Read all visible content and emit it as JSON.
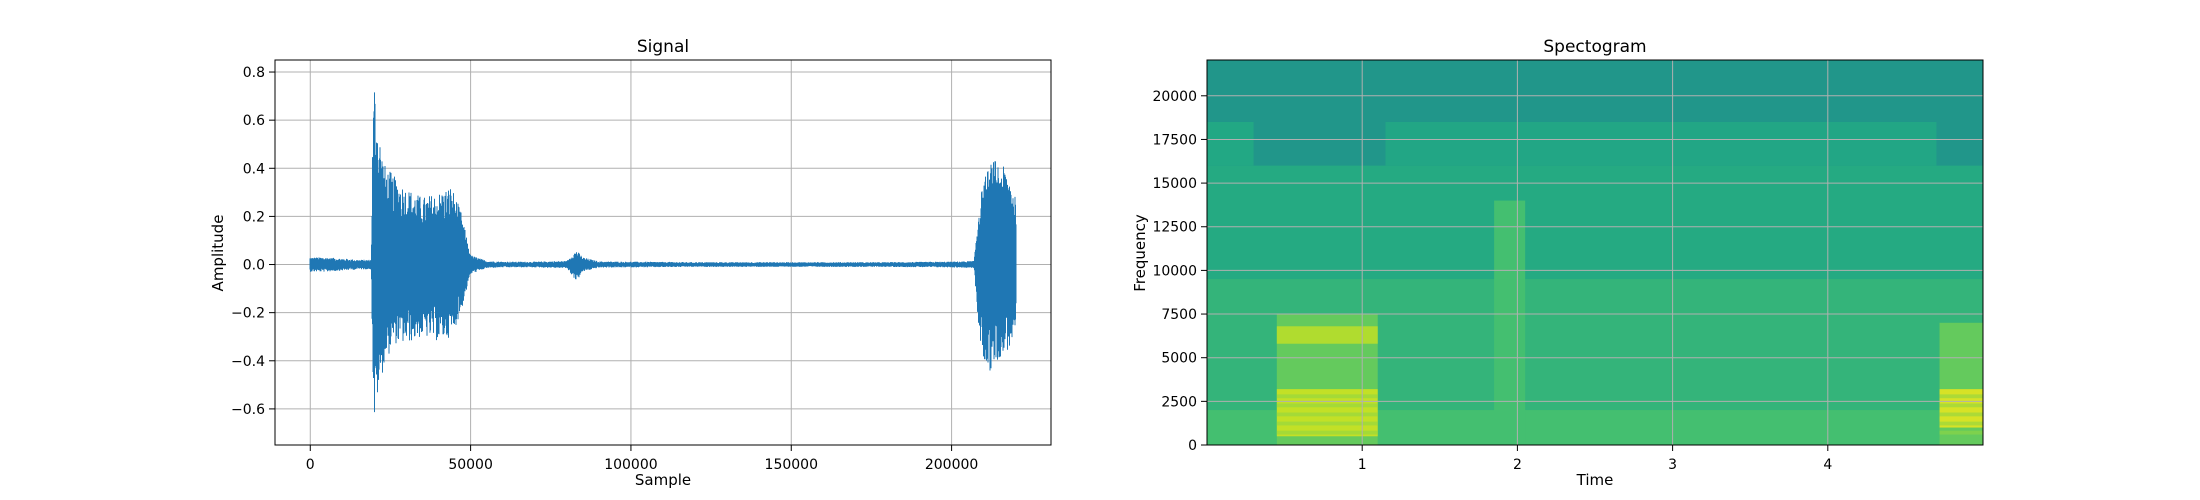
{
  "chart_data": [
    {
      "type": "line",
      "title": "Signal",
      "xlabel": "Sample",
      "ylabel": "Amplitude",
      "xlim": [
        -11000,
        231000
      ],
      "ylim": [
        -0.75,
        0.85
      ],
      "grid": true,
      "color": "#1f77b4",
      "xticks": [
        0,
        50000,
        100000,
        150000,
        200000
      ],
      "xtick_labels": [
        "0",
        "50000",
        "100000",
        "150000",
        "200000"
      ],
      "yticks": [
        -0.6,
        -0.4,
        -0.2,
        0.0,
        0.2,
        0.4,
        0.6,
        0.8
      ],
      "ytick_labels": [
        "−0.6",
        "−0.4",
        "−0.2",
        "0.0",
        "0.2",
        "0.4",
        "0.6",
        "0.8"
      ],
      "series": [
        {
          "x": [
            0,
            5000,
            10000,
            15000,
            19000,
            19500,
            20000,
            21000,
            23000,
            26000,
            30000,
            35000,
            40000,
            44000,
            47000,
            50000,
            55000,
            60000,
            70000,
            80000,
            83000,
            85000,
            90000,
            100000,
            120000,
            140000,
            160000,
            180000,
            200000,
            207000,
            208500,
            210000,
            212000,
            214000,
            216000,
            218000,
            220000
          ],
          "upper": [
            0.03,
            0.03,
            0.025,
            0.02,
            0.02,
            0.6,
            0.78,
            0.6,
            0.42,
            0.37,
            0.32,
            0.28,
            0.3,
            0.33,
            0.22,
            0.04,
            0.015,
            0.012,
            0.012,
            0.015,
            0.06,
            0.03,
            0.013,
            0.012,
            0.01,
            0.01,
            0.01,
            0.01,
            0.012,
            0.015,
            0.25,
            0.35,
            0.42,
            0.44,
            0.41,
            0.38,
            0.3
          ],
          "lower": [
            -0.03,
            -0.03,
            -0.025,
            -0.02,
            -0.02,
            -0.45,
            -0.67,
            -0.55,
            -0.42,
            -0.33,
            -0.33,
            -0.3,
            -0.32,
            -0.3,
            -0.2,
            -0.04,
            -0.015,
            -0.012,
            -0.012,
            -0.015,
            -0.07,
            -0.03,
            -0.013,
            -0.012,
            -0.01,
            -0.01,
            -0.01,
            -0.01,
            -0.012,
            -0.015,
            -0.3,
            -0.4,
            -0.45,
            -0.4,
            -0.38,
            -0.35,
            -0.27
          ]
        }
      ]
    },
    {
      "type": "heatmap",
      "title": "Spectogram",
      "xlabel": "Time",
      "ylabel": "Frequency",
      "xlim": [
        0.0,
        5.0
      ],
      "ylim": [
        0,
        22050
      ],
      "grid": true,
      "xticks": [
        1,
        2,
        3,
        4
      ],
      "xtick_labels": [
        "1",
        "2",
        "3",
        "4"
      ],
      "yticks": [
        0,
        2500,
        5000,
        7500,
        10000,
        12500,
        15000,
        17500,
        20000
      ],
      "ytick_labels": [
        "0",
        "2500",
        "5000",
        "7500",
        "10000",
        "12500",
        "15000",
        "17500",
        "20000"
      ],
      "colormap": [
        "#2a788e",
        "#21918c",
        "#22a884",
        "#44bf70",
        "#7ad151",
        "#bddf26",
        "#fde725"
      ],
      "bands": [
        {
          "t0": 0.0,
          "t1": 5.0,
          "f0": 0,
          "f1": 22050,
          "level": 0.2
        },
        {
          "t0": 0.0,
          "t1": 5.0,
          "f0": 0,
          "f1": 16000,
          "level": 0.35
        },
        {
          "t0": 0.0,
          "t1": 0.3,
          "f0": 16000,
          "f1": 18500,
          "level": 0.33
        },
        {
          "t0": 1.15,
          "t1": 4.7,
          "f0": 16000,
          "f1": 18500,
          "level": 0.32
        },
        {
          "t0": 0.0,
          "t1": 5.0,
          "f0": 0,
          "f1": 9500,
          "level": 0.42
        },
        {
          "t0": 0.0,
          "t1": 5.0,
          "f0": 0,
          "f1": 2000,
          "level": 0.5
        },
        {
          "t0": 0.45,
          "t1": 1.1,
          "f0": 0,
          "f1": 7500,
          "level": 0.6
        },
        {
          "t0": 0.45,
          "t1": 1.1,
          "f0": 500,
          "f1": 3200,
          "level": 0.85
        },
        {
          "t0": 0.45,
          "t1": 1.1,
          "f0": 5800,
          "f1": 6800,
          "level": 0.8
        },
        {
          "t0": 1.85,
          "t1": 2.05,
          "f0": 0,
          "f1": 14000,
          "level": 0.5
        },
        {
          "t0": 4.72,
          "t1": 5.0,
          "f0": 0,
          "f1": 7000,
          "level": 0.6
        },
        {
          "t0": 4.72,
          "t1": 5.0,
          "f0": 1000,
          "f1": 3200,
          "level": 0.9
        }
      ]
    }
  ]
}
